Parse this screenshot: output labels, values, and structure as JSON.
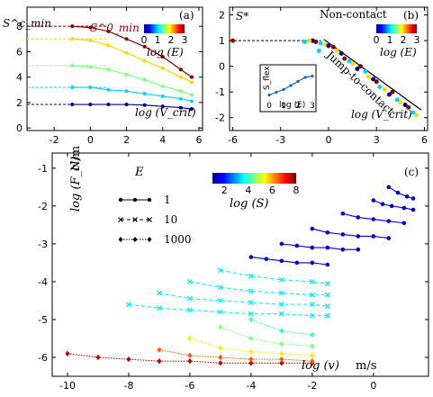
{
  "chart_data": [
    {
      "panel": "(a)",
      "type": "line",
      "xlabel": "log (V_crit)",
      "ylabel": "S^c_min",
      "xlim": [
        -3.5,
        6.2
      ],
      "ylim": [
        -0.2,
        9.5
      ],
      "xticks": [
        -2,
        0,
        2,
        4,
        6
      ],
      "yticks": [
        0,
        2,
        4,
        6,
        8
      ],
      "annotation": "S^0_min",
      "colorbar": {
        "label": "log (E)",
        "ticks": [
          0,
          1,
          2,
          3
        ],
        "range": [
          0,
          3
        ]
      },
      "series": [
        {
          "logE": 0,
          "plateau": 1.85,
          "values": [
            [
              -1,
              1.85
            ],
            [
              0,
              1.85
            ],
            [
              1,
              1.85
            ],
            [
              2,
              1.85
            ],
            [
              3,
              1.8
            ],
            [
              4,
              1.7
            ],
            [
              5,
              1.6
            ],
            [
              5.6,
              1.5
            ]
          ]
        },
        {
          "logE": 1,
          "plateau": 3.2,
          "values": [
            [
              -1,
              3.2
            ],
            [
              0,
              3.2
            ],
            [
              1,
              3.0
            ],
            [
              2,
              2.9
            ],
            [
              3,
              2.7
            ],
            [
              4,
              2.5
            ],
            [
              5,
              2.3
            ],
            [
              5.6,
              2.1
            ]
          ]
        },
        {
          "logE": 1.5,
          "plateau": 4.9,
          "values": [
            [
              -1,
              4.9
            ],
            [
              0,
              4.8
            ],
            [
              1,
              4.6
            ],
            [
              2,
              4.2
            ],
            [
              3,
              3.8
            ],
            [
              4,
              3.3
            ],
            [
              5,
              2.9
            ],
            [
              5.6,
              2.6
            ]
          ]
        },
        {
          "logE": 2,
          "plateau": 7.0,
          "values": [
            [
              -1,
              7.0
            ],
            [
              0,
              6.9
            ],
            [
              1,
              6.5
            ],
            [
              2,
              5.9
            ],
            [
              3,
              5.3
            ],
            [
              4,
              4.7
            ],
            [
              5,
              4.0
            ],
            [
              5.6,
              3.6
            ]
          ]
        },
        {
          "logE": 3,
          "plateau": 8.0,
          "values": [
            [
              -1,
              8.0
            ],
            [
              0,
              7.9
            ],
            [
              1,
              7.6
            ],
            [
              2,
              7.0
            ],
            [
              3,
              6.4
            ],
            [
              4,
              5.6
            ],
            [
              5,
              4.6
            ],
            [
              5.6,
              4.0
            ]
          ]
        }
      ]
    },
    {
      "panel": "(b)",
      "type": "scatter",
      "xlabel": "log (V_crit)",
      "ylabel": "S*",
      "xlim": [
        -6.2,
        6.2
      ],
      "ylim": [
        -2.5,
        2.3
      ],
      "xticks": [
        -6,
        -3,
        0,
        3,
        6
      ],
      "yticks": [
        -2,
        -1,
        0,
        1,
        2
      ],
      "annotations": [
        "Non-contact",
        "Jump-to-contact"
      ],
      "colorbar": {
        "label": "log (E)",
        "ticks": [
          0,
          1,
          2,
          3
        ],
        "range": [
          0,
          3
        ]
      },
      "points": [
        [
          -1.0,
          1.0,
          0
        ],
        [
          -0.8,
          0.95,
          3
        ],
        [
          -0.5,
          0.9,
          1
        ],
        [
          -0.2,
          0.85,
          2
        ],
        [
          0.0,
          0.8,
          0
        ],
        [
          0.3,
          0.75,
          3
        ],
        [
          -1.2,
          1.0,
          2
        ],
        [
          -0.6,
          0.6,
          1
        ],
        [
          0.5,
          0.6,
          2
        ],
        [
          0.8,
          0.5,
          0
        ],
        [
          1.0,
          0.3,
          3
        ],
        [
          1.3,
          0.2,
          1
        ],
        [
          1.5,
          0.1,
          2
        ],
        [
          1.8,
          -0.1,
          0
        ],
        [
          2.0,
          0.0,
          3
        ],
        [
          2.3,
          -0.2,
          1
        ],
        [
          2.5,
          -0.4,
          2
        ],
        [
          2.8,
          -0.5,
          0
        ],
        [
          3.0,
          -0.6,
          3
        ],
        [
          3.2,
          -0.8,
          1
        ],
        [
          3.5,
          -0.9,
          2
        ],
        [
          3.8,
          -1.1,
          0
        ],
        [
          4.0,
          -1.0,
          3
        ],
        [
          4.3,
          -1.3,
          1
        ],
        [
          4.5,
          -1.4,
          2
        ],
        [
          4.8,
          -1.5,
          0
        ],
        [
          5.0,
          -1.6,
          3
        ],
        [
          5.3,
          -1.8,
          1
        ],
        [
          5.5,
          -1.9,
          2
        ],
        [
          -1.5,
          0.95,
          1
        ]
      ],
      "fit_line": [
        [
          -0.3,
          1.05
        ],
        [
          5.8,
          -1.7
        ]
      ],
      "inset": {
        "xlabel": "log (E)",
        "ylabel": "S_flex",
        "xticks": [
          0,
          1,
          2,
          3
        ],
        "values": [
          [
            0,
            0.15
          ],
          [
            0.5,
            0.25
          ],
          [
            1,
            0.35
          ],
          [
            1.5,
            0.5
          ],
          [
            2,
            0.65
          ],
          [
            2.5,
            0.8
          ],
          [
            3,
            0.85
          ]
        ]
      }
    },
    {
      "panel": "(c)",
      "type": "line",
      "xlabel": "log (v)",
      "xunit": "m/s",
      "ylabel": "log (F_cl)",
      "yunit": "N/m",
      "xlim": [
        -10.5,
        1.8
      ],
      "ylim": [
        -6.5,
        -0.6
      ],
      "xticks": [
        -10,
        -8,
        -6,
        -4,
        -2,
        0
      ],
      "yticks": [
        -6,
        -5,
        -4,
        -3,
        -2,
        -1
      ],
      "legend_title": "E",
      "legend": [
        "1",
        "10",
        "1000"
      ],
      "colorbar": {
        "label": "log (S)",
        "ticks": [
          2,
          4,
          6,
          8
        ],
        "range": [
          1,
          8
        ]
      },
      "series": [
        {
          "name": "1",
          "logS": 1.5,
          "values": [
            [
              -4.0,
              -3.35
            ],
            [
              -3.5,
              -3.4
            ],
            [
              -3.0,
              -3.45
            ],
            [
              -2.5,
              -3.5
            ],
            [
              -2.0,
              -3.5
            ],
            [
              -1.5,
              -3.55
            ]
          ]
        },
        {
          "name": "1",
          "logS": 1.5,
          "values": [
            [
              -3.0,
              -3.0
            ],
            [
              -2.5,
              -3.05
            ],
            [
              -2.0,
              -3.1
            ],
            [
              -1.5,
              -3.1
            ],
            [
              -1.0,
              -3.15
            ],
            [
              -0.5,
              -3.15
            ]
          ]
        },
        {
          "name": "1",
          "logS": 1.5,
          "values": [
            [
              -2.0,
              -2.6
            ],
            [
              -1.5,
              -2.7
            ],
            [
              -1.0,
              -2.75
            ],
            [
              -0.5,
              -2.8
            ],
            [
              0.0,
              -2.8
            ],
            [
              0.5,
              -2.85
            ]
          ]
        },
        {
          "name": "1",
          "logS": 1.5,
          "values": [
            [
              -1.0,
              -2.2
            ],
            [
              -0.5,
              -2.3
            ],
            [
              0.0,
              -2.35
            ],
            [
              0.5,
              -2.4
            ],
            [
              1.0,
              -2.45
            ]
          ]
        },
        {
          "name": "1",
          "logS": 1.5,
          "values": [
            [
              0.0,
              -1.85
            ],
            [
              0.3,
              -1.95
            ],
            [
              0.6,
              -2.0
            ],
            [
              1.0,
              -2.05
            ],
            [
              1.3,
              -2.1
            ]
          ]
        },
        {
          "name": "1",
          "logS": 1.5,
          "values": [
            [
              0.5,
              -1.5
            ],
            [
              0.8,
              -1.65
            ],
            [
              1.1,
              -1.75
            ],
            [
              1.3,
              -1.8
            ]
          ]
        },
        {
          "name": "10",
          "logS": 3.5,
          "values": [
            [
              -8.0,
              -4.6
            ],
            [
              -7.0,
              -4.7
            ],
            [
              -6.0,
              -4.75
            ],
            [
              -5.0,
              -4.8
            ],
            [
              -4.0,
              -4.85
            ],
            [
              -3.0,
              -4.85
            ],
            [
              -2.0,
              -4.9
            ],
            [
              -1.5,
              -4.9
            ]
          ]
        },
        {
          "name": "10",
          "logS": 3.5,
          "values": [
            [
              -7.0,
              -4.3
            ],
            [
              -6.0,
              -4.45
            ],
            [
              -5.0,
              -4.5
            ],
            [
              -4.0,
              -4.55
            ],
            [
              -3.0,
              -4.6
            ],
            [
              -2.0,
              -4.6
            ],
            [
              -1.5,
              -4.65
            ]
          ]
        },
        {
          "name": "10",
          "logS": 3.5,
          "values": [
            [
              -6.0,
              -4.0
            ],
            [
              -5.0,
              -4.15
            ],
            [
              -4.0,
              -4.25
            ],
            [
              -3.0,
              -4.3
            ],
            [
              -2.0,
              -4.35
            ],
            [
              -1.5,
              -4.35
            ]
          ]
        },
        {
          "name": "10",
          "logS": 3.5,
          "values": [
            [
              -5.0,
              -3.7
            ],
            [
              -4.0,
              -3.85
            ],
            [
              -3.0,
              -3.95
            ],
            [
              -2.0,
              -4.0
            ],
            [
              -1.5,
              -4.05
            ]
          ]
        },
        {
          "name": "1000",
          "logS": 7.5,
          "values": [
            [
              -10.0,
              -5.9
            ],
            [
              -9.0,
              -6.0
            ],
            [
              -8.0,
              -6.05
            ],
            [
              -7.0,
              -6.1
            ],
            [
              -6.0,
              -6.1
            ],
            [
              -5.0,
              -6.15
            ],
            [
              -4.0,
              -6.15
            ],
            [
              -3.0,
              -6.15
            ],
            [
              -2.0,
              -6.15
            ]
          ]
        },
        {
          "name": "1000",
          "logS": 6.5,
          "values": [
            [
              -7.0,
              -5.8
            ],
            [
              -6.0,
              -5.95
            ],
            [
              -5.0,
              -6.0
            ],
            [
              -4.0,
              -6.05
            ],
            [
              -3.0,
              -6.05
            ],
            [
              -2.0,
              -6.1
            ]
          ]
        },
        {
          "name": "1000",
          "logS": 5.5,
          "values": [
            [
              -6.0,
              -5.5
            ],
            [
              -5.0,
              -5.75
            ],
            [
              -4.0,
              -5.85
            ],
            [
              -3.0,
              -5.9
            ],
            [
              -2.0,
              -5.95
            ]
          ]
        },
        {
          "name": "1000",
          "logS": 4.5,
          "values": [
            [
              -5.0,
              -5.2
            ],
            [
              -4.0,
              -5.5
            ],
            [
              -3.0,
              -5.65
            ],
            [
              -2.0,
              -5.7
            ]
          ]
        },
        {
          "name": "1000",
          "logS": 4.0,
          "values": [
            [
              -4.0,
              -5.0
            ],
            [
              -3.0,
              -5.3
            ],
            [
              -2.0,
              -5.4
            ]
          ]
        }
      ]
    }
  ]
}
